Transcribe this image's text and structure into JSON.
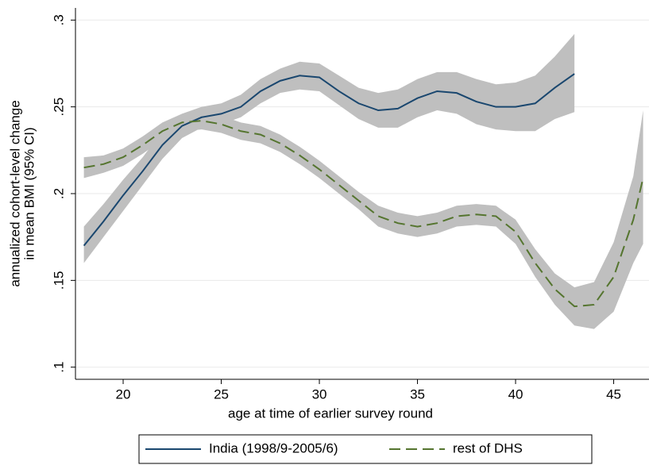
{
  "chart_data": {
    "type": "line",
    "x_label": "age at time of earlier survey round",
    "y_label": [
      "annualized cohort-level change",
      "in mean BMI (95% CI)"
    ],
    "x": [
      18,
      19,
      20,
      21,
      22,
      23,
      24,
      25,
      26,
      27,
      28,
      29,
      30,
      31,
      32,
      33,
      34,
      35,
      36,
      37,
      38,
      39,
      40,
      41,
      42,
      43,
      44,
      45,
      46,
      46.5
    ],
    "series": [
      {
        "name": "India (1998/9-2005/6)",
        "color": "#1a476f",
        "line_style": "solid",
        "values": [
          0.17,
          0.184,
          0.199,
          0.213,
          0.228,
          0.239,
          0.244,
          0.246,
          0.25,
          0.259,
          0.265,
          0.268,
          0.267,
          0.259,
          0.252,
          0.248,
          0.249,
          0.255,
          0.259,
          0.258,
          0.253,
          0.25,
          0.25,
          0.252,
          0.261,
          0.269,
          null,
          null,
          null,
          null
        ],
        "lower": [
          0.16,
          0.175,
          0.19,
          0.205,
          0.22,
          0.232,
          0.238,
          0.24,
          0.244,
          0.252,
          0.258,
          0.26,
          0.259,
          0.251,
          0.243,
          0.238,
          0.238,
          0.244,
          0.248,
          0.246,
          0.24,
          0.237,
          0.236,
          0.236,
          0.243,
          0.247,
          null,
          null,
          null,
          null
        ],
        "upper": [
          0.181,
          0.194,
          0.208,
          0.221,
          0.236,
          0.246,
          0.25,
          0.252,
          0.257,
          0.266,
          0.272,
          0.276,
          0.275,
          0.268,
          0.261,
          0.258,
          0.26,
          0.266,
          0.27,
          0.27,
          0.266,
          0.263,
          0.264,
          0.268,
          0.279,
          0.292,
          null,
          null,
          null,
          null
        ]
      },
      {
        "name": "rest of DHS",
        "color": "#55752f",
        "line_style": "dashed",
        "values": [
          0.215,
          0.217,
          0.221,
          0.228,
          0.236,
          0.241,
          0.242,
          0.24,
          0.236,
          0.234,
          0.229,
          0.222,
          0.214,
          0.205,
          0.196,
          0.187,
          0.183,
          0.181,
          0.183,
          0.187,
          0.188,
          0.187,
          0.178,
          0.16,
          0.145,
          0.135,
          0.136,
          0.152,
          0.185,
          0.209
        ],
        "lower": [
          0.209,
          0.212,
          0.216,
          0.223,
          0.231,
          0.236,
          0.237,
          0.235,
          0.231,
          0.229,
          0.224,
          0.217,
          0.209,
          0.2,
          0.191,
          0.181,
          0.177,
          0.175,
          0.177,
          0.181,
          0.182,
          0.181,
          0.171,
          0.152,
          0.136,
          0.124,
          0.122,
          0.132,
          0.16,
          0.171
        ],
        "upper": [
          0.221,
          0.222,
          0.226,
          0.233,
          0.241,
          0.246,
          0.247,
          0.245,
          0.241,
          0.239,
          0.234,
          0.227,
          0.219,
          0.21,
          0.201,
          0.193,
          0.189,
          0.187,
          0.189,
          0.193,
          0.194,
          0.193,
          0.185,
          0.168,
          0.154,
          0.146,
          0.149,
          0.172,
          0.21,
          0.248
        ]
      }
    ],
    "band_color": "#bfbfbf",
    "xlim": [
      17.57,
      46.8
    ],
    "xticks": [
      20,
      25,
      30,
      35,
      40,
      45
    ],
    "ylim": [
      0.093,
      0.307
    ],
    "yticks": [
      {
        "value": 0.1,
        "label": ".1"
      },
      {
        "value": 0.15,
        "label": ".15"
      },
      {
        "value": 0.2,
        "label": ".2"
      },
      {
        "value": 0.25,
        "label": ".25"
      },
      {
        "value": 0.3,
        "label": ".3"
      }
    ],
    "grid": true,
    "legend": "bottom"
  }
}
